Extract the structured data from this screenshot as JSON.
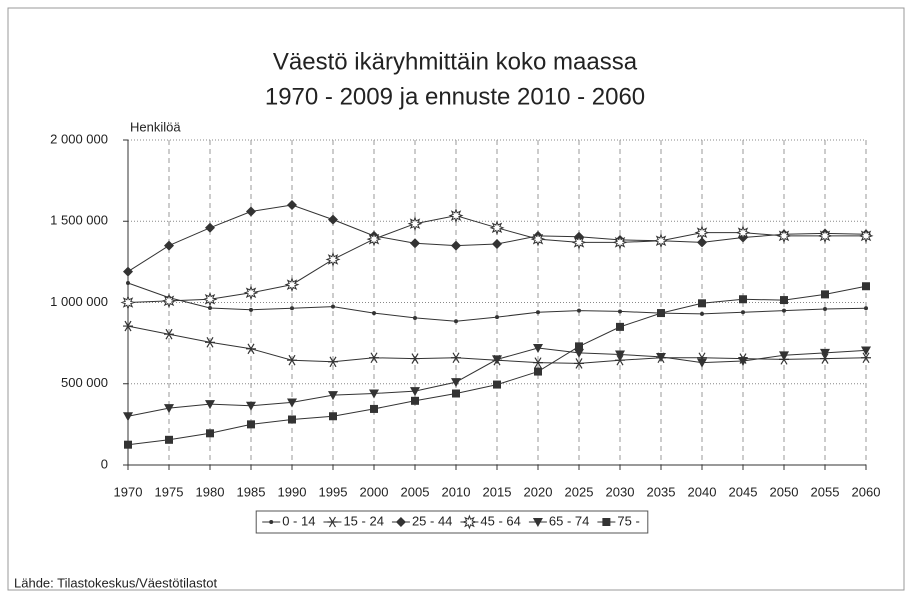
{
  "chart_data": {
    "type": "line",
    "title": "Väestö ikäryhmittäin koko maassa",
    "subtitle": "1970 - 2009 ja ennuste 2010 - 2060",
    "ylabel": "Henkilöä",
    "source": "Lähde: Tilastokeskus/Väestötilastot",
    "categories": [
      "1970",
      "1975",
      "1980",
      "1985",
      "1990",
      "1995",
      "2000",
      "2005",
      "2010",
      "2015",
      "2020",
      "2025",
      "2030",
      "2035",
      "2040",
      "2045",
      "2050",
      "2055",
      "2060"
    ],
    "ylim": [
      0,
      2000000
    ],
    "yticks": [
      0,
      {
        "value": 500000,
        "label": "500 000"
      },
      {
        "value": 1000000,
        "label": "1 000 000"
      },
      {
        "value": 1500000,
        "label": "1 500 000"
      },
      {
        "value": 2000000,
        "label": "2 000 000"
      }
    ],
    "grid": true,
    "legend": "bottom",
    "series": [
      {
        "name": "0 - 14",
        "color": "#333333",
        "marker": "dot",
        "values": [
          1120000,
          1030000,
          966000,
          955000,
          965000,
          975000,
          935000,
          905000,
          885000,
          910000,
          940000,
          950000,
          945000,
          935000,
          930000,
          940000,
          950000,
          960000,
          965000
        ]
      },
      {
        "name": "15 - 24",
        "color": "#333333",
        "marker": "star",
        "values": [
          855000,
          805000,
          755000,
          715000,
          645000,
          635000,
          660000,
          655000,
          660000,
          645000,
          630000,
          625000,
          645000,
          660000,
          660000,
          655000,
          650000,
          655000,
          660000
        ]
      },
      {
        "name": "25 - 44",
        "color": "#333333",
        "marker": "diamond",
        "values": [
          1190000,
          1350000,
          1460000,
          1560000,
          1600000,
          1510000,
          1410000,
          1365000,
          1350000,
          1360000,
          1410000,
          1405000,
          1385000,
          1380000,
          1370000,
          1400000,
          1420000,
          1425000,
          1420000
        ]
      },
      {
        "name": "45 - 64",
        "color": "#333333",
        "marker": "open-star",
        "values": [
          1000000,
          1010000,
          1020000,
          1060000,
          1110000,
          1265000,
          1390000,
          1485000,
          1535000,
          1460000,
          1390000,
          1370000,
          1370000,
          1380000,
          1430000,
          1430000,
          1410000,
          1410000,
          1410000
        ]
      },
      {
        "name": "65 - 74",
        "color": "#333333",
        "marker": "triangle-down",
        "values": [
          300000,
          350000,
          375000,
          365000,
          385000,
          430000,
          440000,
          455000,
          510000,
          650000,
          720000,
          690000,
          680000,
          665000,
          630000,
          640000,
          675000,
          690000,
          705000
        ]
      },
      {
        "name": "75 -",
        "color": "#333333",
        "marker": "square",
        "values": [
          125000,
          155000,
          195000,
          250000,
          280000,
          300000,
          345000,
          395000,
          440000,
          495000,
          575000,
          730000,
          850000,
          935000,
          995000,
          1020000,
          1015000,
          1050000,
          1100000
        ]
      }
    ]
  }
}
